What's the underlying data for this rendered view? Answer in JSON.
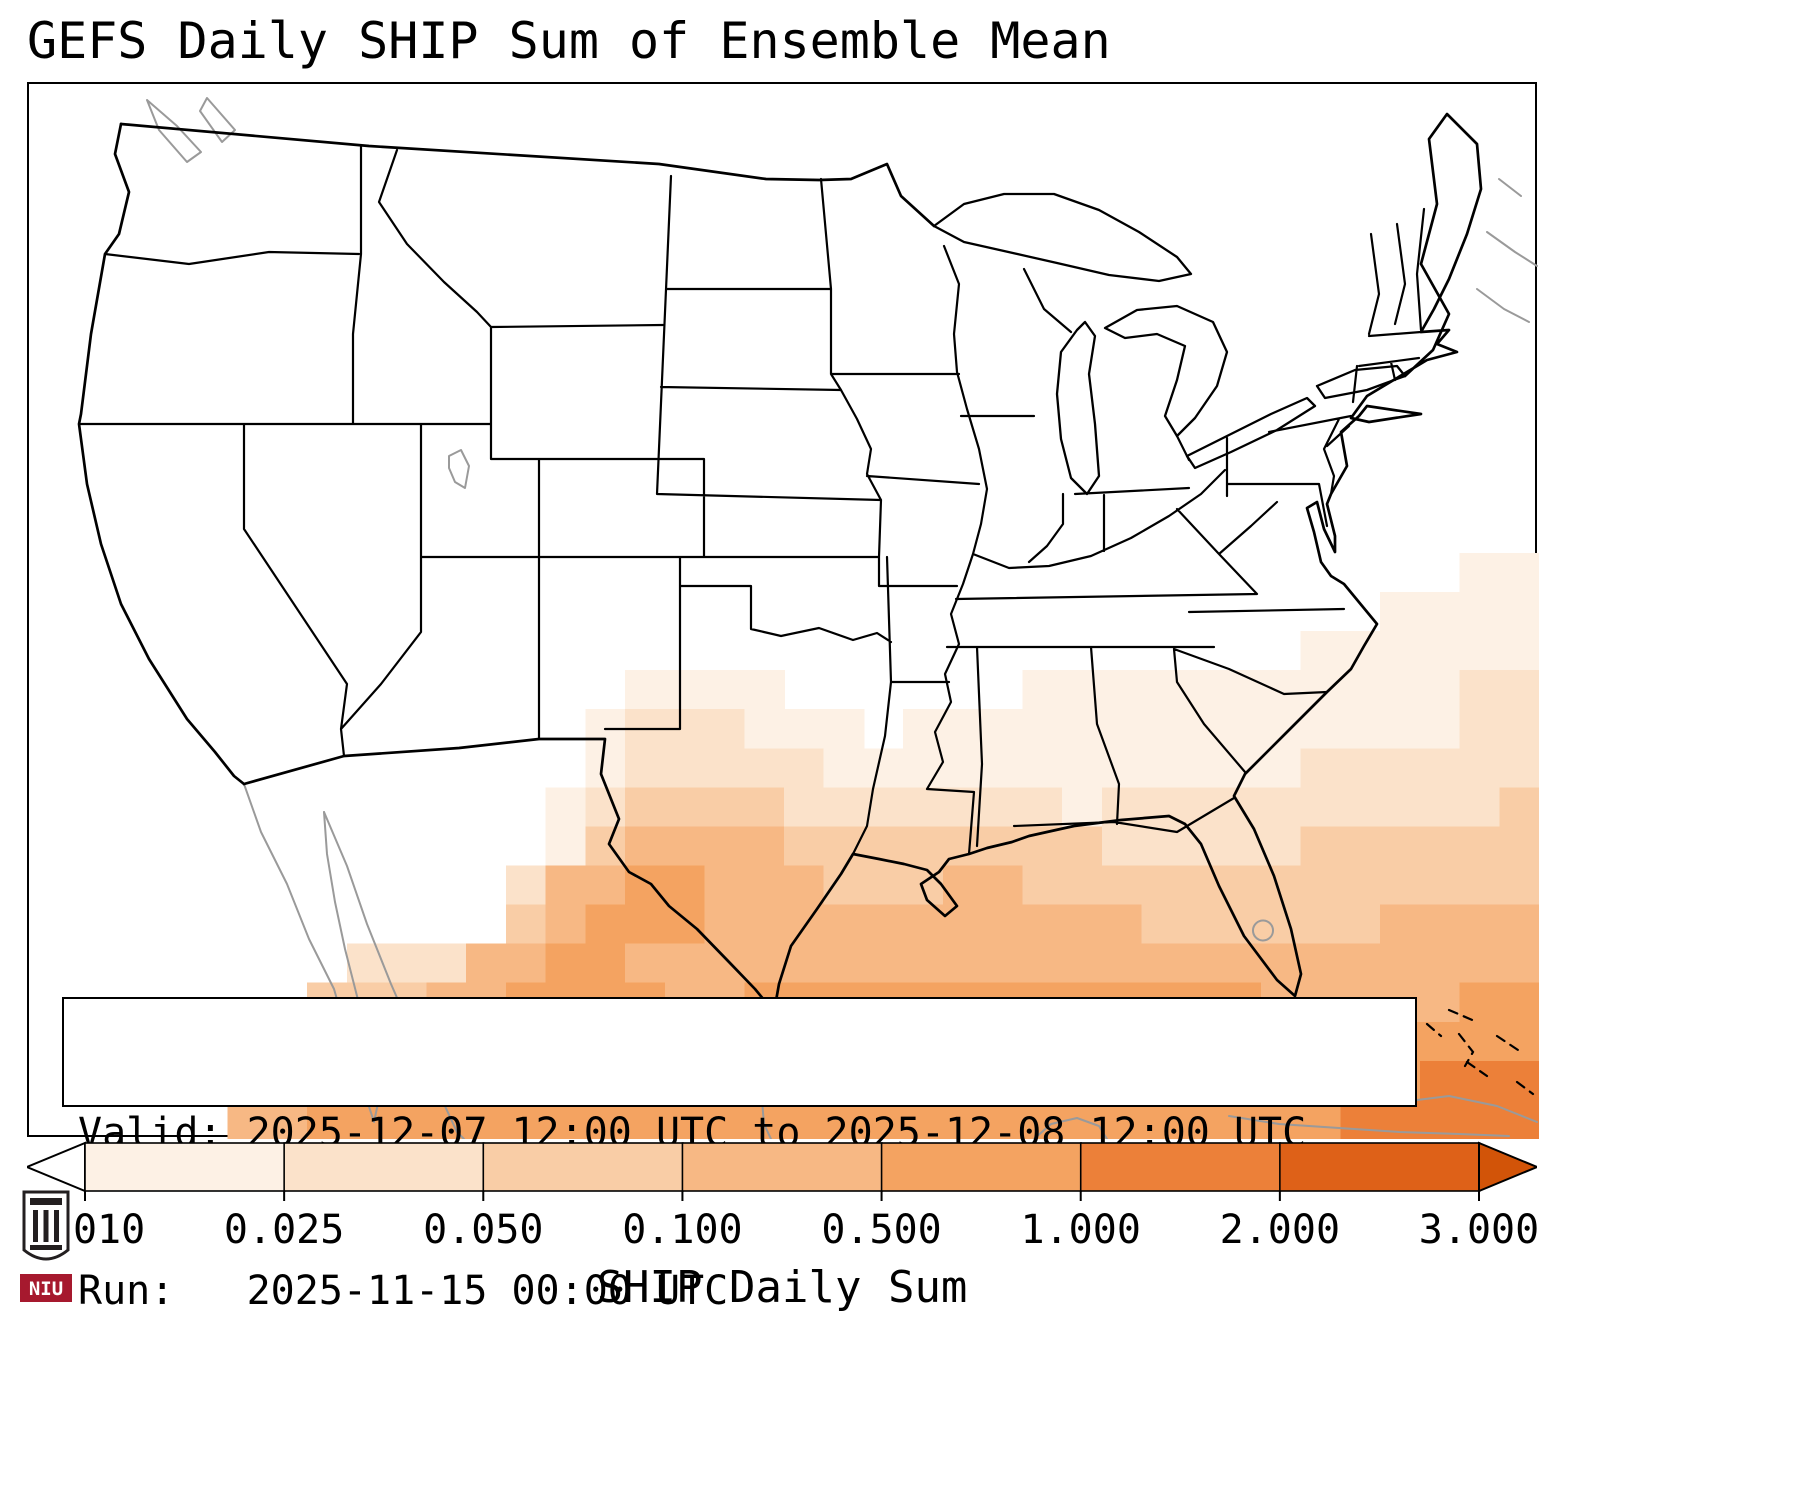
{
  "title": "GEFS Daily SHIP Sum of Ensemble Mean",
  "info_box": {
    "valid_line": "Valid: 2025-12-07 12:00 UTC to 2025-12-08 12:00 UTC",
    "run_line": "Run:   2025-11-15 00:00 UTC"
  },
  "colorbar": {
    "label": "SHIP Daily Sum",
    "tick_labels": [
      "0.010",
      "0.025",
      "0.050",
      "0.100",
      "0.500",
      "1.000",
      "2.000",
      "3.000"
    ],
    "segment_colors": [
      "#fdf1e5",
      "#fbe2ca",
      "#f9cda6",
      "#f7b884",
      "#f4a361",
      "#ec8039",
      "#de6118"
    ],
    "under_color": "#ffffff",
    "over_color": "#d25408",
    "outline_color": "#000000"
  },
  "logo": {
    "text": "NIU",
    "red": "#a6192e",
    "dark": "#231f20"
  },
  "chart_data": {
    "type": "heatmap",
    "title": "GEFS Daily SHIP Sum of Ensemble Mean",
    "colorbar_label": "SHIP Daily Sum",
    "valid_start": "2025-12-07 12:00 UTC",
    "valid_end": "2025-12-08 12:00 UTC",
    "run": "2025-11-15 00:00 UTC",
    "levels": [
      0.01,
      0.025,
      0.05,
      0.1,
      0.5,
      1.0,
      2.0,
      3.0
    ],
    "palette": [
      "none",
      "#fdf1e5",
      "#fbe2ca",
      "#f9cda6",
      "#f7b884",
      "#f4a361",
      "#ec8039",
      "#de6118"
    ],
    "grid_note": "Approximate SHIP daily-sum field over CONUS/Gulf domain. Each char indexes palette (0=no shading, 1-7=bins between levels). 38 cols x 27 rows covering the map axes.",
    "grid_rows": [
      "00000000000000000000000000000000000000",
      "00000000000000000000000000000000000000",
      "00000000000000000000000000000000000000",
      "00000000000000000000000000000000000000",
      "00000000000000000000000000000000000000",
      "00000000000000000000000000000000000000",
      "00000000000000000000000000000000000000",
      "00000000000000000000000000000000000000",
      "00000000000000000000000000000000000000",
      "00000000000000000000000000000000000000",
      "00000000000000000000000000000000000000",
      "00000000000000000000000000000000000000",
      "00000000000000000000000000000000000011",
      "00000000000000000000000000000000001111",
      "00000000000000000000000000000000111111",
      "00000000000000011110000001111111111122",
      "00000000000000122211101111111111111122",
      "00000000000000122222111111111111222222",
      "00000000000001233332222222122222222223",
      "00000000000001344443333333322222333333",
      "00000000000024455444333443333333333333",
      "00000000000034555444444444443333334444",
      "00000000222445544444444444444444444444",
      "00000003334455554455555555555554444455",
      "00000034443445555555555555555555555555",
      "00000344445555555555555555555555555666",
      "00000445555555555555555555555555566666"
    ]
  }
}
